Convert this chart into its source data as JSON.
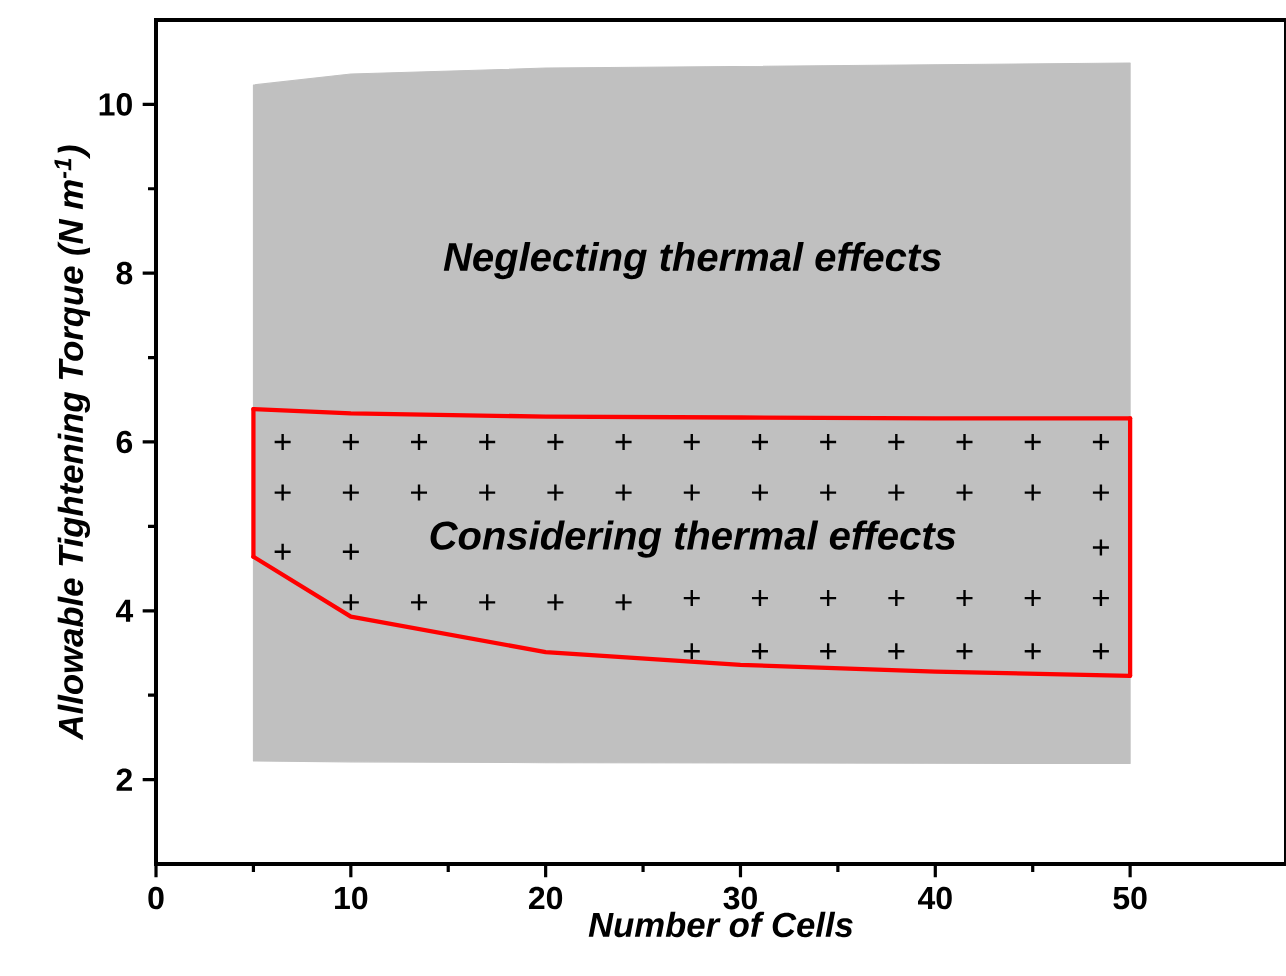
{
  "chart_data": {
    "type": "area",
    "xlabel": "Number of Cells",
    "ylabel": "Allowable Tightening Torque (N m$^{-1}$)",
    "xlim": [
      0,
      58
    ],
    "ylim": [
      1,
      11
    ],
    "xticks": [
      0,
      10,
      20,
      30,
      40,
      50
    ],
    "yticks": [
      2,
      4,
      6,
      8,
      10
    ],
    "series": [
      {
        "color": "#c0c0c0",
        "x": [
          5,
          10,
          20,
          50,
          50,
          20,
          10,
          5
        ],
        "values": [
          10.23,
          10.36,
          10.43,
          10.49,
          2.19,
          2.2,
          2.21,
          2.22
        ]
      },
      {
        "type": "line",
        "color": "#ff0000",
        "x": [
          5,
          10,
          20,
          30,
          40,
          50
        ],
        "values": [
          6.39,
          6.34,
          6.3,
          6.29,
          6.28,
          6.28
        ]
      },
      {
        "type": "line",
        "color": "#ff0000",
        "x": [
          5,
          10,
          20,
          30,
          40,
          50
        ],
        "values": [
          4.64,
          3.93,
          3.51,
          3.36,
          3.28,
          3.23
        ]
      },
      {
        "type": "line",
        "color": "#ff0000",
        "x": [
          5,
          5
        ],
        "values": [
          4.64,
          6.39
        ]
      },
      {
        "type": "line",
        "color": "#ff0000",
        "x": [
          50,
          50
        ],
        "values": [
          3.23,
          6.28
        ]
      },
      {
        "type": "scatter",
        "color": "#000000",
        "marker": "cross",
        "x": [
          6.5,
          10,
          13.5,
          17,
          20.5,
          24,
          27.5,
          31,
          34.5,
          38,
          41.5,
          45,
          48.5,
          6.5,
          10,
          13.5,
          17,
          20.5,
          24,
          27.5,
          31,
          34.5,
          38,
          41.5,
          45,
          48.5,
          6.5,
          10,
          48.5,
          10,
          13.5,
          17,
          20.5,
          24,
          27.5,
          31,
          34.5,
          38,
          41.5,
          45,
          48.5,
          27.5,
          31,
          34.5,
          38,
          41.5,
          45,
          48.5
        ],
        "values": [
          6.0,
          6.0,
          6.0,
          6.0,
          6.0,
          6.0,
          6.0,
          6.0,
          6.0,
          6.0,
          6.0,
          6.0,
          6.0,
          5.4,
          5.4,
          5.4,
          5.4,
          5.4,
          5.4,
          5.4,
          5.4,
          5.4,
          5.4,
          5.4,
          5.4,
          5.4,
          4.7,
          4.7,
          4.75,
          4.1,
          4.1,
          4.1,
          4.1,
          4.1,
          4.15,
          4.15,
          4.15,
          4.15,
          4.15,
          4.15,
          4.15,
          3.52,
          3.52,
          3.52,
          3.52,
          3.52,
          3.52,
          3.52
        ]
      }
    ],
    "annotations": [
      "Neglecting thermal effects",
      "Considering thermal effects"
    ]
  }
}
